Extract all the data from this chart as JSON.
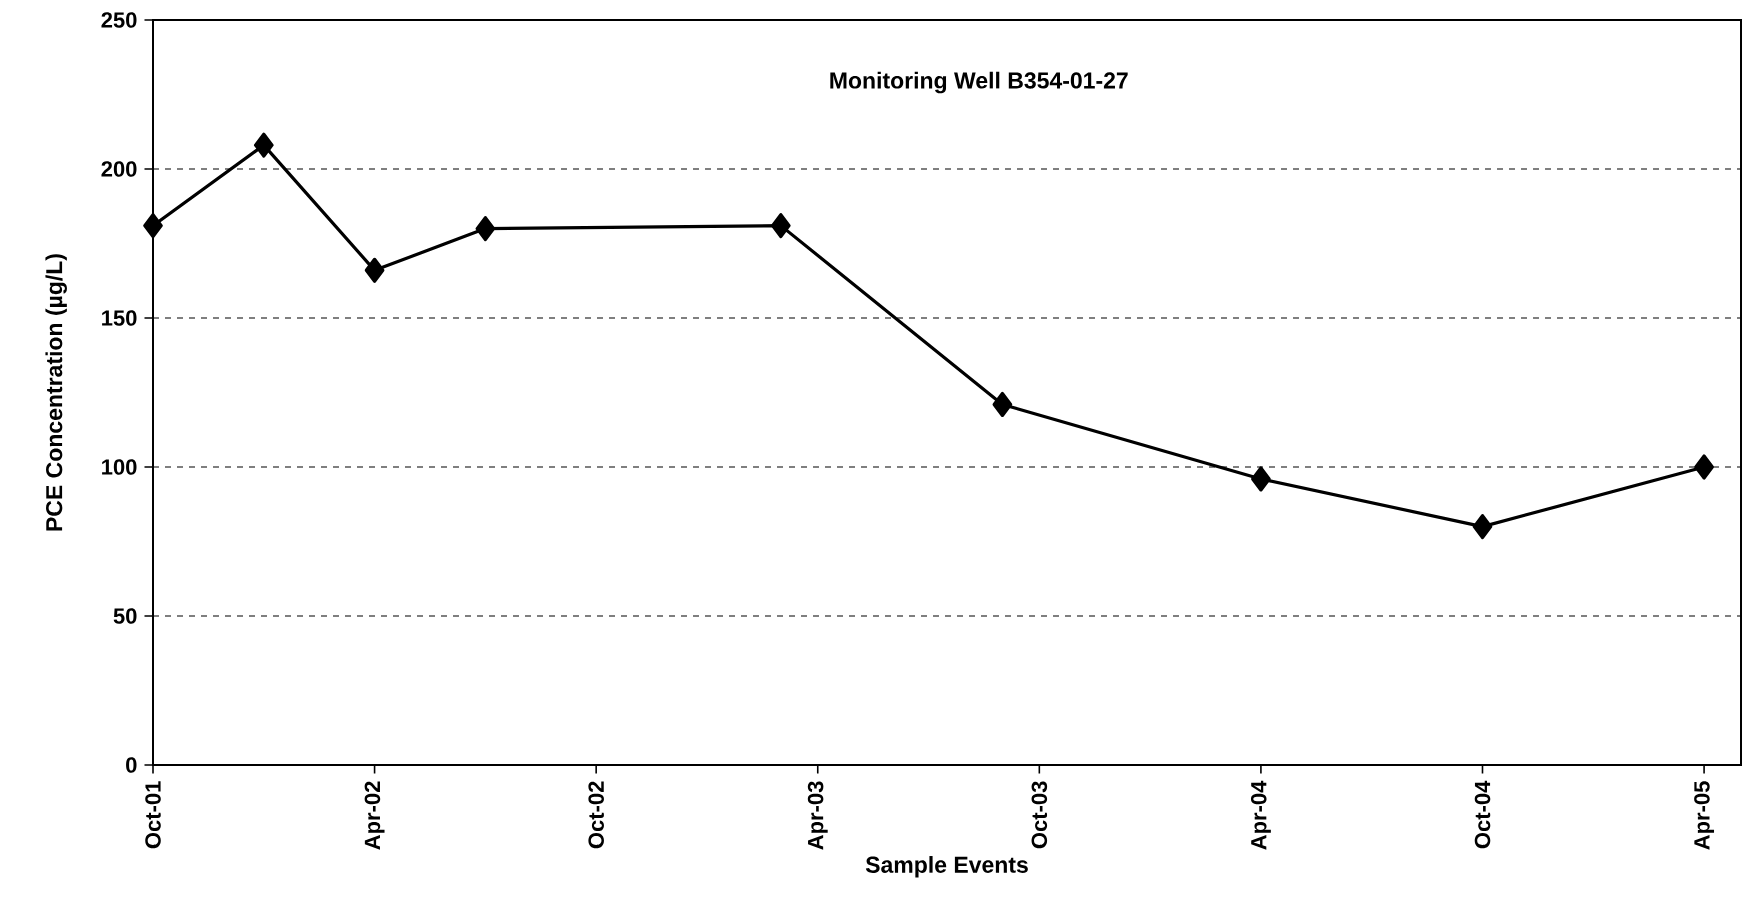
{
  "chart_data": {
    "type": "line",
    "title": "Monitoring Well B354-01-27",
    "xlabel": "Sample Events",
    "ylabel": "PCE Concentration (µg/L)",
    "x": [
      "2001-10",
      "2002-01",
      "2002-04",
      "2002-07",
      "2003-03",
      "2003-09",
      "2004-04",
      "2004-10",
      "2005-04"
    ],
    "series": [
      {
        "color": "#000000",
        "values": [
          181,
          208,
          166,
          180,
          181,
          121,
          96,
          80,
          100
        ]
      }
    ],
    "xlim": [
      "2001-10",
      "2005-05"
    ],
    "xticks": [
      {
        "value": "2001-10",
        "label": "Oct-01"
      },
      {
        "value": "2002-04",
        "label": "Apr-02"
      },
      {
        "value": "2002-10",
        "label": "Oct-02"
      },
      {
        "value": "2003-04",
        "label": "Apr-03"
      },
      {
        "value": "2003-10",
        "label": "Oct-03"
      },
      {
        "value": "2004-04",
        "label": "Apr-04"
      },
      {
        "value": "2004-10",
        "label": "Oct-04"
      },
      {
        "value": "2005-04",
        "label": "Apr-05"
      }
    ],
    "ylim": [
      0,
      250
    ],
    "yticks": [
      0,
      50,
      100,
      150,
      200,
      250
    ],
    "grid": "y",
    "marker": "diamond",
    "line_style": "solid"
  }
}
